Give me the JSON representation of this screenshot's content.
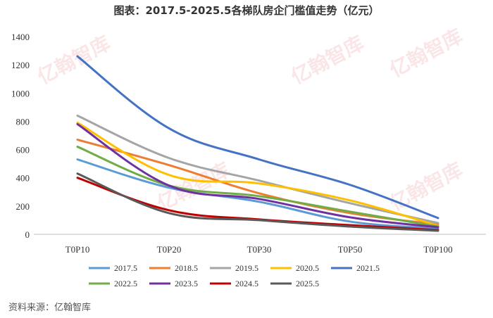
{
  "title": "图表：2017.5-2025.5各梯队房企门槛值走势（亿元）",
  "source": "资料来源：亿翰智库",
  "watermark": "亿翰智库",
  "chart_data": {
    "type": "line",
    "title": "图表：2017.5-2025.5各梯队房企门槛值走势（亿元）",
    "xlabel": "",
    "ylabel": "",
    "categories": [
      "T0P10",
      "T0P20",
      "T0P30",
      "T0P50",
      "T0P100"
    ],
    "ylim": [
      0,
      1400
    ],
    "yticks": [
      0,
      200,
      400,
      600,
      800,
      1000,
      1200,
      1400
    ],
    "grid": false,
    "legend_position": "bottom",
    "series": [
      {
        "name": "2017.5",
        "color": "#5b9bd5",
        "values": [
          530,
          330,
          230,
          90,
          40
        ]
      },
      {
        "name": "2018.5",
        "color": "#ed7d31",
        "values": [
          670,
          490,
          290,
          150,
          70
        ]
      },
      {
        "name": "2019.5",
        "color": "#a5a5a5",
        "values": [
          840,
          540,
          380,
          220,
          80
        ]
      },
      {
        "name": "2020.5",
        "color": "#ffc000",
        "values": [
          790,
          420,
          360,
          240,
          60
        ]
      },
      {
        "name": "2021.5",
        "color": "#4472c4",
        "values": [
          1260,
          750,
          530,
          350,
          115
        ]
      },
      {
        "name": "2022.5",
        "color": "#70ad47",
        "values": [
          620,
          345,
          270,
          160,
          55
        ]
      },
      {
        "name": "2023.5",
        "color": "#7030a0",
        "values": [
          780,
          345,
          250,
          120,
          50
        ]
      },
      {
        "name": "2024.5",
        "color": "#c00000",
        "values": [
          400,
          170,
          105,
          65,
          30
        ]
      },
      {
        "name": "2025.5",
        "color": "#595959",
        "values": [
          430,
          150,
          100,
          55,
          25
        ]
      }
    ]
  }
}
